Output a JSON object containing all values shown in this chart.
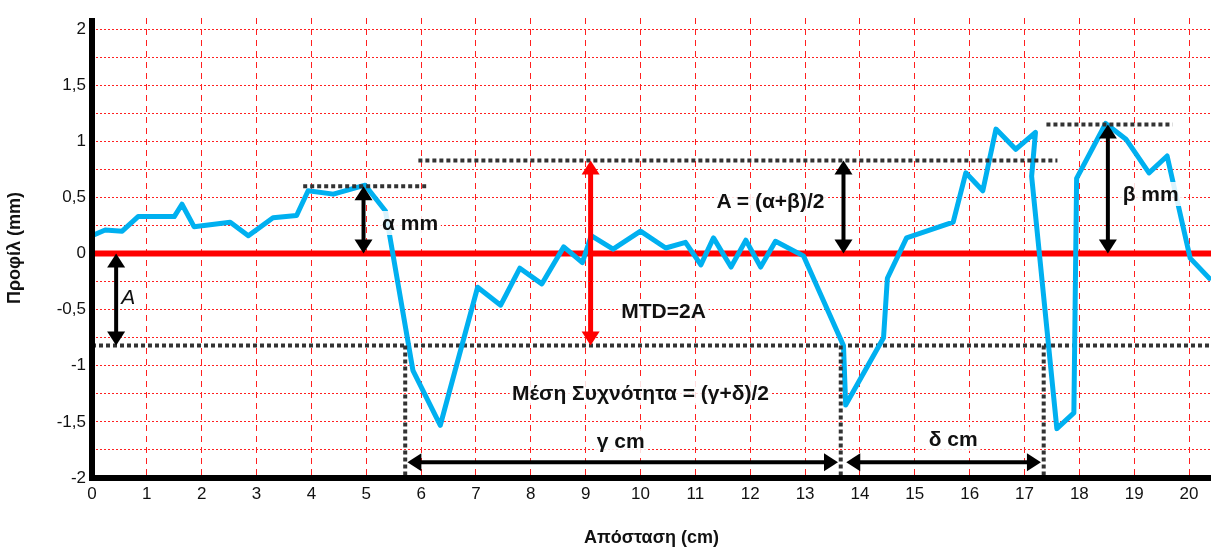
{
  "chart_data": {
    "type": "line",
    "xlabel": "Απόσταση (cm)",
    "ylabel": "Προφίλ (mm)",
    "xlim": [
      0,
      20.4
    ],
    "ylim": [
      -2,
      2.1
    ],
    "xticks": [
      0,
      1,
      2,
      3,
      4,
      5,
      6,
      7,
      8,
      9,
      10,
      11,
      12,
      13,
      14,
      15,
      16,
      17,
      18,
      19,
      20
    ],
    "yticks": [
      -2,
      {
        "value": -1.75,
        "label": null
      },
      {
        "value": -1.5,
        "label": "-1,5"
      },
      {
        "value": -1.25,
        "label": null
      },
      -1,
      {
        "value": -0.75,
        "label": null
      },
      {
        "value": -0.5,
        "label": "-0,5"
      },
      {
        "value": -0.25,
        "label": null
      },
      0,
      {
        "value": 0.25,
        "label": null
      },
      {
        "value": 0.5,
        "label": "0,5"
      },
      {
        "value": 0.75,
        "label": null
      },
      1,
      {
        "value": 1.25,
        "label": null
      },
      {
        "value": 1.5,
        "label": "1,5"
      },
      {
        "value": 1.75,
        "label": null
      },
      2
    ],
    "grid": true,
    "legend": false,
    "line_style": "solid",
    "ref_lines": [
      {
        "axis": "y",
        "value": 0,
        "color": "#ff0000",
        "line_style": "solid"
      },
      {
        "axis": "y",
        "value": -0.82,
        "color": "#333333",
        "line_style": "dotted"
      }
    ],
    "series": [
      {
        "color": "#333333",
        "line_style": "dotted",
        "x": [
          3.85,
          6.1
        ],
        "values": [
          0.6,
          0.6
        ]
      },
      {
        "color": "#333333",
        "line_style": "dotted",
        "x": [
          5.95,
          17.6
        ],
        "values": [
          0.83,
          0.83
        ]
      },
      {
        "color": "#333333",
        "line_style": "dotted",
        "x": [
          17.4,
          19.7
        ],
        "values": [
          1.15,
          1.15
        ]
      },
      {
        "color": "#333333",
        "line_style": "dotted",
        "x": [
          5.71,
          5.71
        ],
        "values": [
          -0.82,
          -2
        ]
      },
      {
        "color": "#333333",
        "line_style": "dotted",
        "x": [
          13.65,
          13.65
        ],
        "values": [
          -0.82,
          -2
        ]
      },
      {
        "color": "#333333",
        "line_style": "dotted",
        "x": [
          17.35,
          17.35
        ],
        "values": [
          -0.82,
          -2
        ]
      },
      {
        "color": "#00b0f0",
        "x": [
          0,
          0.24,
          0.55,
          0.84,
          1.5,
          1.64,
          1.86,
          2.52,
          2.85,
          3.3,
          3.73,
          3.94,
          4.4,
          4.98,
          5.35,
          5.85,
          6.35,
          7.03,
          7.45,
          7.8,
          8.2,
          8.6,
          8.94,
          9.1,
          9.5,
          10,
          10.46,
          10.82,
          11.1,
          11.33,
          11.65,
          11.92,
          12.19,
          12.46,
          12.97,
          13.28,
          13.7,
          13.74,
          14.43,
          14.5,
          14.85,
          15.7,
          15.93,
          16.24,
          16.48,
          16.84,
          17.2,
          17.13,
          17.59,
          17.9,
          17.95,
          18.48,
          18.85,
          19.27,
          19.6,
          20.02,
          20.37
        ],
        "values": [
          0.16,
          0.21,
          0.2,
          0.33,
          0.33,
          0.44,
          0.24,
          0.28,
          0.16,
          0.32,
          0.34,
          0.56,
          0.53,
          0.61,
          0.38,
          -1.04,
          -1.53,
          -0.3,
          -0.46,
          -0.13,
          -0.27,
          0.06,
          -0.08,
          0.16,
          0.04,
          0.2,
          0.05,
          0.1,
          -0.1,
          0.14,
          -0.12,
          0.12,
          -0.12,
          0.11,
          -0.02,
          -0.36,
          -0.82,
          -1.35,
          -0.75,
          -0.22,
          0.14,
          0.28,
          0.72,
          0.56,
          1.11,
          0.93,
          1.08,
          0.69,
          -1.56,
          -1.42,
          0.67,
          1.16,
          1.02,
          0.72,
          0.87,
          -0.04,
          -0.22
        ]
      }
    ],
    "annotations": [
      "A",
      "α mm",
      "A = (α+β)/2",
      "MTD=2A",
      "Μέση Συχνότητα = (γ+δ)/2",
      "γ cm",
      "δ cm",
      "β mm"
    ]
  }
}
